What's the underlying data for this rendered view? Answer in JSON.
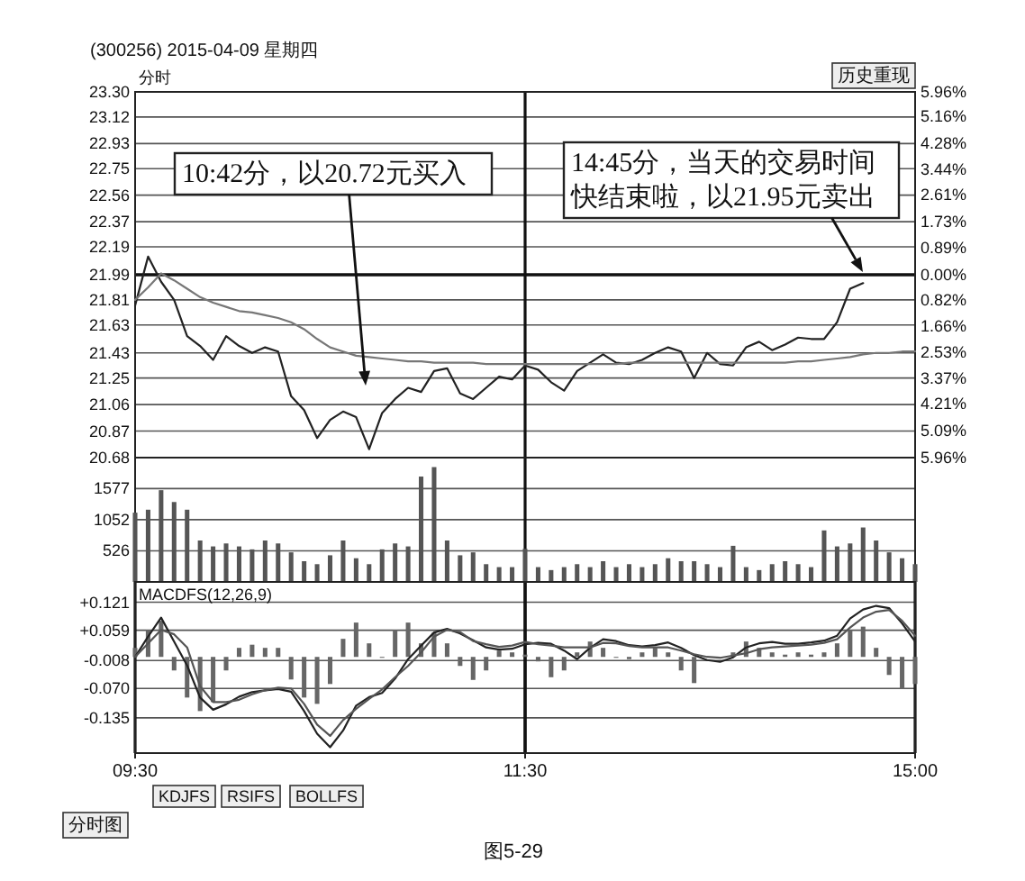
{
  "chart_data": [
    {
      "type": "line",
      "title": "(300256) 2015-04-09 星期四",
      "ylim": [
        20.68,
        23.3
      ],
      "tick_labels": "y",
      "grid": "y",
      "categories": [
        null,
        null,
        null,
        null,
        null,
        null,
        null,
        null,
        null,
        null,
        null,
        null,
        null,
        null,
        null,
        null,
        null,
        null,
        null,
        null,
        null,
        null,
        null,
        null,
        null,
        null,
        null,
        null,
        null,
        null,
        null,
        null,
        null,
        null,
        null,
        null,
        null,
        null,
        null,
        null,
        null,
        null,
        null,
        null,
        null,
        null,
        null,
        null,
        null,
        null,
        null,
        null,
        null,
        null,
        null,
        null,
        null,
        null,
        null,
        null,
        null
      ],
      "yticks": [
        {
          "value": 23.3,
          "label": "23.30"
        },
        23.12,
        22.93,
        22.75,
        22.56,
        22.37,
        22.19,
        21.99,
        21.81,
        21.63,
        21.43,
        21.25,
        21.06,
        20.87,
        20.68
      ],
      "y2lim": [
        -5.96,
        5.96
      ],
      "y2ticks": [
        {
          "value": 5.96,
          "label": "5.96%"
        },
        {
          "value": 5.16,
          "label": "5.16%"
        },
        {
          "value": 4.28,
          "label": "4.28%"
        },
        {
          "value": 3.44,
          "label": "3.44%"
        },
        {
          "value": 2.61,
          "label": "2.61%"
        },
        {
          "value": 1.73,
          "label": "1.73%"
        },
        {
          "value": 0.89,
          "label": "0.89%"
        },
        {
          "value": 0,
          "label": "0.00%"
        },
        {
          "value": -0.82,
          "label": "0.82%"
        },
        {
          "value": -1.66,
          "label": "1.66%"
        },
        {
          "value": -2.53,
          "label": "2.53%"
        },
        {
          "value": -3.37,
          "label": "3.37%"
        },
        {
          "value": -4.21,
          "label": "4.21%"
        },
        {
          "value": -5.09,
          "label": "5.09%"
        },
        {
          "value": -5.96,
          "label": "5.96%"
        }
      ],
      "ref_lines": [
        {
          "axis": "y",
          "value": 21.99,
          "color": "#111111"
        }
      ],
      "series": [
        {
          "color": "#222222",
          "values": [
            21.77,
            22.12,
            21.94,
            21.81,
            21.55,
            21.48,
            21.38,
            21.55,
            21.48,
            21.43,
            21.47,
            21.44,
            21.12,
            21.02,
            20.82,
            20.95,
            21.01,
            20.97,
            20.74,
            21.0,
            21.1,
            21.18,
            21.15,
            21.3,
            21.32,
            21.14,
            21.1,
            21.18,
            21.26,
            21.24,
            21.34,
            21.31,
            21.22,
            21.16,
            21.3,
            21.36,
            21.42,
            21.36,
            21.35,
            21.38,
            21.43,
            21.47,
            21.44,
            21.25,
            21.43,
            21.35,
            21.34,
            21.47,
            21.51,
            21.45,
            21.49,
            21.54,
            21.53,
            21.53,
            21.65,
            21.89,
            21.93,
            null,
            null,
            null,
            null
          ]
        },
        {
          "color": "#777777",
          "values": [
            21.81,
            21.9,
            22.0,
            21.95,
            21.89,
            21.83,
            21.79,
            21.76,
            21.73,
            21.72,
            21.7,
            21.68,
            21.65,
            21.6,
            21.53,
            21.47,
            21.44,
            21.41,
            21.4,
            21.39,
            21.38,
            21.37,
            21.37,
            21.36,
            21.36,
            21.36,
            21.36,
            21.35,
            21.35,
            21.35,
            21.35,
            21.35,
            21.35,
            21.35,
            21.35,
            21.35,
            21.35,
            21.35,
            21.36,
            21.36,
            21.36,
            21.36,
            21.36,
            21.36,
            21.36,
            21.36,
            21.36,
            21.36,
            21.36,
            21.36,
            21.36,
            21.37,
            21.37,
            21.38,
            21.39,
            21.4,
            21.42,
            21.43,
            21.43,
            21.44,
            21.44
          ]
        }
      ],
      "annotations": [
        "分时",
        "10:42分，以20.72元买入",
        "14:45分，当天的交易时间快结束啦，以21.95元卖出",
        "历史重现"
      ]
    },
    {
      "type": "bar",
      "ylim": [
        0,
        2100
      ],
      "tick_labels": "y",
      "grid": "y",
      "yticks": [
        526,
        1052,
        1577
      ],
      "color": "#555555",
      "categories": [
        null,
        null,
        null,
        null,
        null,
        null,
        null,
        null,
        null,
        null,
        null,
        null,
        null,
        null,
        null,
        null,
        null,
        null,
        null,
        null,
        null,
        null,
        null,
        null,
        null,
        null,
        null,
        null,
        null,
        null,
        null,
        null,
        null,
        null,
        null,
        null,
        null,
        null,
        null,
        null,
        null,
        null,
        null,
        null,
        null,
        null,
        null,
        null,
        null,
        null,
        null,
        null,
        null,
        null,
        null,
        null,
        null,
        null,
        null,
        null,
        null
      ],
      "values": [
        1170,
        1220,
        1550,
        1350,
        1220,
        700,
        600,
        650,
        600,
        550,
        700,
        650,
        500,
        350,
        300,
        450,
        700,
        400,
        300,
        550,
        650,
        600,
        1780,
        1940,
        700,
        450,
        500,
        300,
        250,
        250,
        560,
        250,
        200,
        250,
        300,
        250,
        350,
        250,
        300,
        250,
        300,
        400,
        350,
        350,
        300,
        250,
        610,
        250,
        200,
        300,
        350,
        300,
        250,
        870,
        600,
        650,
        920,
        700,
        500,
        400,
        300
      ]
    },
    {
      "type": "line",
      "title": "MACDFS(12,26,9)",
      "ylim": [
        -0.213,
        0.166
      ],
      "grid": true,
      "categories": [
        "09:30",
        null,
        null,
        null,
        null,
        null,
        null,
        null,
        null,
        null,
        null,
        null,
        null,
        null,
        null,
        null,
        null,
        null,
        null,
        null,
        null,
        null,
        null,
        null,
        null,
        null,
        null,
        null,
        null,
        null,
        "11:30",
        null,
        null,
        null,
        null,
        null,
        null,
        null,
        null,
        null,
        null,
        null,
        null,
        null,
        null,
        null,
        null,
        null,
        null,
        null,
        null,
        null,
        null,
        null,
        null,
        null,
        null,
        null,
        null,
        null,
        "15:00"
      ],
      "yticks": [
        {
          "value": 0.121,
          "label": "+0.121"
        },
        {
          "value": 0.059,
          "label": "+0.059"
        },
        {
          "value": -0.008,
          "label": "-0.008"
        },
        {
          "value": -0.07,
          "label": "-0.070"
        },
        {
          "value": -0.135,
          "label": "-0.135"
        }
      ],
      "series": [
        {
          "type": "bar",
          "color": "#666666",
          "values": [
            0.02,
            0.06,
            0.08,
            -0.03,
            -0.09,
            -0.12,
            -0.1,
            -0.03,
            0.02,
            0.027,
            0.02,
            0.02,
            -0.05,
            -0.09,
            -0.104,
            -0.06,
            0.04,
            0.076,
            0.03,
            0.0,
            0.06,
            0.076,
            0.03,
            0.054,
            0.03,
            -0.02,
            -0.051,
            -0.03,
            0.014,
            0.01,
            0.005,
            -0.01,
            -0.045,
            -0.03,
            0.01,
            0.034,
            0.02,
            0.0,
            -0.005,
            0.01,
            0.02,
            0.01,
            -0.03,
            -0.058,
            null,
            null,
            0.01,
            0.034,
            0.02,
            0.01,
            0.005,
            0.01,
            0.005,
            0.01,
            0.03,
            0.06,
            0.067,
            0.02,
            -0.04,
            -0.071,
            -0.06
          ]
        },
        {
          "color": "#222222",
          "values": [
            0.0,
            0.045,
            0.087,
            0.034,
            -0.019,
            -0.09,
            -0.117,
            -0.105,
            -0.088,
            -0.078,
            -0.074,
            -0.071,
            -0.077,
            -0.12,
            -0.17,
            -0.2,
            -0.163,
            -0.108,
            -0.089,
            -0.08,
            -0.048,
            -0.005,
            0.025,
            0.054,
            0.062,
            0.052,
            0.037,
            0.021,
            0.016,
            0.018,
            0.028,
            0.031,
            0.029,
            0.014,
            -0.005,
            0.02,
            0.039,
            0.035,
            0.026,
            0.023,
            0.026,
            0.032,
            0.02,
            0.004,
            -0.007,
            -0.011,
            -0.001,
            0.021,
            0.03,
            0.033,
            0.029,
            0.029,
            0.032,
            0.036,
            0.047,
            0.085,
            0.105,
            0.113,
            0.108,
            0.074,
            0.034
          ]
        },
        {
          "color": "#555555",
          "values": [
            0.0,
            0.03,
            0.06,
            0.05,
            0.021,
            -0.065,
            -0.1,
            -0.1,
            -0.095,
            -0.083,
            -0.074,
            -0.068,
            -0.07,
            -0.104,
            -0.15,
            -0.175,
            -0.14,
            -0.115,
            -0.093,
            -0.072,
            -0.045,
            -0.02,
            0.01,
            0.045,
            0.06,
            0.055,
            0.035,
            0.028,
            0.022,
            0.025,
            0.033,
            0.028,
            0.025,
            0.021,
            0.021,
            0.021,
            0.031,
            0.03,
            0.024,
            0.021,
            0.021,
            0.021,
            0.014,
            0.006,
            0.0,
            -0.002,
            0.003,
            0.008,
            0.017,
            0.021,
            0.023,
            0.025,
            0.027,
            0.031,
            0.039,
            0.065,
            0.087,
            0.1,
            0.104,
            0.08,
            0.047
          ]
        }
      ],
      "annotations": [
        "KDJFS",
        "RSIFS",
        "BOLLFS",
        "分时图",
        "图5-29"
      ]
    }
  ]
}
